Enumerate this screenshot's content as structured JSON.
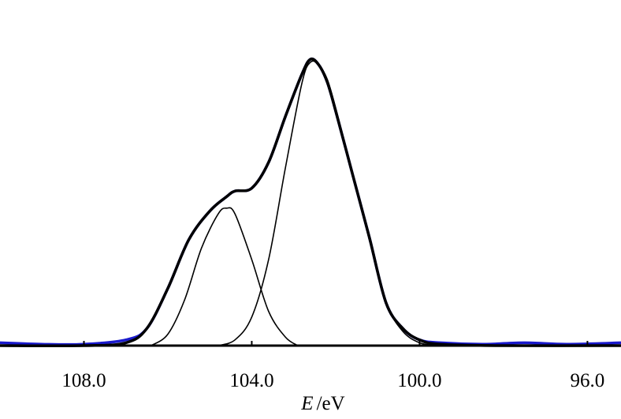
{
  "chart_data": {
    "type": "line",
    "xlabel_var": "E",
    "xlabel_unit": "/eV",
    "x_reversed": true,
    "xlim": [
      110.0,
      95.2
    ],
    "ylim": [
      0,
      1.05
    ],
    "x_ticks": [
      {
        "value": 108.0,
        "label": "108.0"
      },
      {
        "value": 104.0,
        "label": "104.0"
      },
      {
        "value": 100.0,
        "label": "100.0"
      },
      {
        "value": 96.0,
        "label": "96.0"
      }
    ],
    "grid": false,
    "legend": "none",
    "colors": {
      "raw": "#1a1acc",
      "envelope": "#000000",
      "component": "#000000",
      "baseline": "#000000"
    },
    "series": [
      {
        "role": "raw",
        "x": [
          110.0,
          109.0,
          108.0,
          107.0,
          106.5,
          106.0,
          105.5,
          105.0,
          104.6,
          104.4,
          104.0,
          103.6,
          103.2,
          102.8,
          102.6,
          102.4,
          102.2,
          102.0,
          101.6,
          101.2,
          100.8,
          100.4,
          100.0,
          99.5,
          98.5,
          97.5,
          96.5,
          95.2
        ],
        "y": [
          0.01,
          0.005,
          0.005,
          0.02,
          0.06,
          0.2,
          0.37,
          0.47,
          0.52,
          0.54,
          0.55,
          0.64,
          0.8,
          0.95,
          1.0,
          0.98,
          0.92,
          0.82,
          0.6,
          0.38,
          0.15,
          0.06,
          0.02,
          0.01,
          0.005,
          0.01,
          0.005,
          0.01
        ]
      },
      {
        "role": "envelope",
        "x": [
          110.0,
          108.0,
          107.0,
          106.5,
          106.0,
          105.5,
          105.0,
          104.6,
          104.4,
          104.0,
          103.6,
          103.2,
          102.8,
          102.6,
          102.4,
          102.2,
          102.0,
          101.6,
          101.2,
          100.8,
          100.4,
          100.0,
          99.5,
          98.0,
          95.2
        ],
        "y": [
          0.0,
          0.0,
          0.01,
          0.06,
          0.2,
          0.37,
          0.47,
          0.52,
          0.54,
          0.55,
          0.64,
          0.8,
          0.95,
          1.0,
          0.98,
          0.92,
          0.82,
          0.6,
          0.38,
          0.15,
          0.06,
          0.02,
          0.005,
          0.0,
          0.0
        ]
      },
      {
        "role": "component",
        "x": [
          106.4,
          106.0,
          105.6,
          105.2,
          104.8,
          104.6,
          104.4,
          104.0,
          103.6,
          103.2,
          102.9
        ],
        "y": [
          0.0,
          0.04,
          0.16,
          0.34,
          0.46,
          0.48,
          0.46,
          0.3,
          0.12,
          0.03,
          0.0
        ]
      },
      {
        "role": "component",
        "x": [
          104.8,
          104.4,
          104.0,
          103.6,
          103.2,
          102.8,
          102.6,
          102.4,
          102.2,
          102.0,
          101.6,
          101.2,
          100.8,
          100.4,
          100.0,
          99.6
        ],
        "y": [
          0.0,
          0.02,
          0.1,
          0.3,
          0.62,
          0.92,
          0.99,
          0.98,
          0.93,
          0.83,
          0.6,
          0.37,
          0.15,
          0.05,
          0.01,
          0.0
        ]
      }
    ]
  }
}
